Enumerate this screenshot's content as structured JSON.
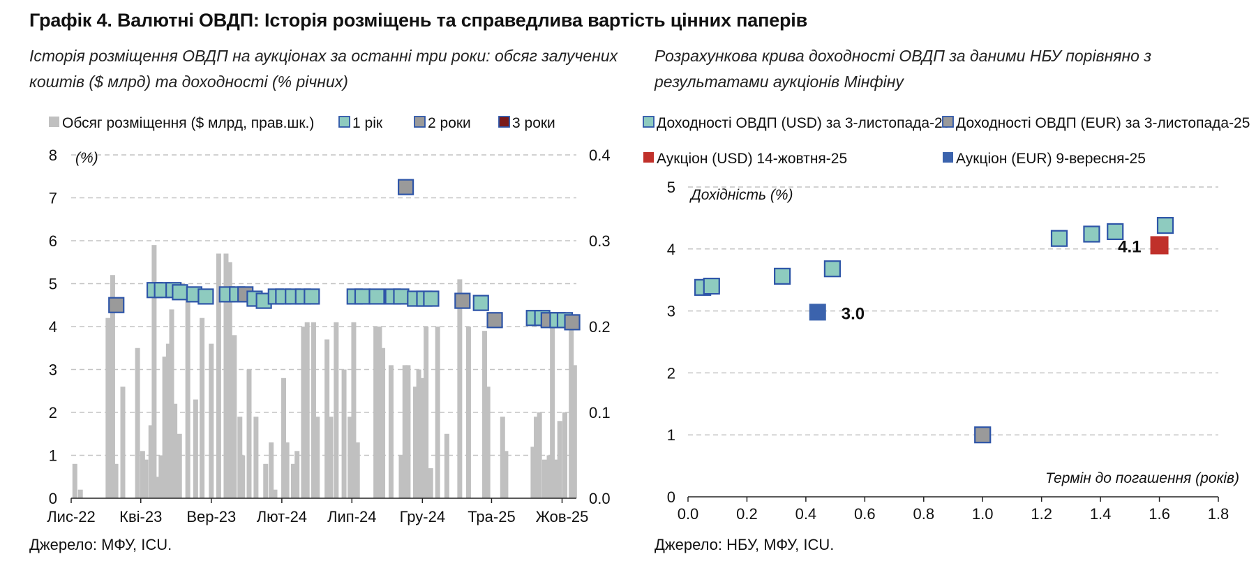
{
  "title": "Графік 4. Валютні ОВДП: Історія розміщень та справедлива вартість цінних паперів",
  "left": {
    "subtitle_line1": "Історія розміщення ОВДП на аукціонах за останні три роки: обсяг залучених",
    "subtitle_line2": "коштів ($ млрд) та доходності (% річних)",
    "source": "Джерело: МФУ, ICU."
  },
  "right": {
    "subtitle_line1": "Розрахункова крива доходності ОВДП за даними НБУ порівняно з",
    "subtitle_line2": "результатами аукціонів Мінфіну",
    "source": "Джерело: НБУ, МФУ, ICU."
  },
  "colors": {
    "bar": "#c0c0c0",
    "teal": "#8ecbbf",
    "gray_marker": "#9a9a9a",
    "marker_border": "#2e55a8",
    "dark_red": "#7a1a1a",
    "red": "#c0302a",
    "blue": "#3b63ad",
    "grid": "#c4c4c4"
  },
  "chart_data": [
    {
      "type": "bar",
      "title": "",
      "legend": [
        "Обсяг розміщення ($ млрд, прав.шк.)",
        "1 рік",
        "2 роки",
        "3 роки"
      ],
      "legend_placement": "top",
      "ylabel_left": "(%)",
      "yticks_left": [
        "0",
        "1",
        "2",
        "3",
        "4",
        "5",
        "6",
        "7",
        "8"
      ],
      "ylim_left": [
        0,
        8
      ],
      "yticks_right": [
        "0.0",
        "0.1",
        "0.2",
        "0.3",
        "0.4"
      ],
      "ylim_right": [
        0,
        0.4
      ],
      "xlim": [
        0,
        1096
      ],
      "x_ticks": [
        {
          "label": "Лис-22",
          "x": 0
        },
        {
          "label": "Кві-23",
          "x": 151
        },
        {
          "label": "Вер-23",
          "x": 304
        },
        {
          "label": "Лют-24",
          "x": 457
        },
        {
          "label": "Лип-24",
          "x": 609
        },
        {
          "label": "Гру-24",
          "x": 762
        },
        {
          "label": "Тра-25",
          "x": 912
        },
        {
          "label": "Жов-25",
          "x": 1065
        }
      ],
      "grid": true,
      "volume_series": {
        "name": "Обсяг розміщення ($ млрд, прав.шк.)",
        "x": [
          8,
          20,
          80,
          90,
          97,
          112,
          144,
          155,
          162,
          173,
          180,
          188,
          195,
          203,
          211,
          218,
          225,
          235,
          253,
          270,
          284,
          304,
          320,
          336,
          344,
          354,
          366,
          372,
          386,
          401,
          422,
          434,
          442,
          461,
          468,
          482,
          490,
          504,
          512,
          526,
          534,
          555,
          563,
          575,
          592,
          605,
          613,
          621,
          661,
          669,
          676,
          694,
          716,
          724,
          731,
          747,
          754,
          762,
          770,
          780,
          795,
          815,
          843,
          862,
          897,
          904,
          936,
          943,
          1002,
          1009,
          1016,
          1027,
          1037,
          1044,
          1052,
          1060,
          1071,
          1085,
          1092
        ],
        "values": [
          0.04,
          0.01,
          0.21,
          0.26,
          0.04,
          0.13,
          0.175,
          0.055,
          0.045,
          0.085,
          0.295,
          0.025,
          0.05,
          0.165,
          0.18,
          0.22,
          0.11,
          0.075,
          0.235,
          0.115,
          0.21,
          0.18,
          0.285,
          0.285,
          0.275,
          0.19,
          0.095,
          0.05,
          0.15,
          0.095,
          0.04,
          0.065,
          0.01,
          0.14,
          0.065,
          0.04,
          0.055,
          0.2,
          0.205,
          0.205,
          0.095,
          0.185,
          0.095,
          0.205,
          0.15,
          0.095,
          0.205,
          0.065,
          0.2,
          0.2,
          0.175,
          0.155,
          0.05,
          0.155,
          0.155,
          0.13,
          0.15,
          0.14,
          0.2,
          0.035,
          0.2,
          0.075,
          0.255,
          0.2,
          0.195,
          0.13,
          0.095,
          0.055,
          0.06,
          0.095,
          0.1,
          0.045,
          0.05,
          0.215,
          0.045,
          0.09,
          0.1,
          0.21,
          0.155
        ]
      },
      "markers": [
        {
          "series": "2 роки",
          "x": 98,
          "y": 4.5
        },
        {
          "series": "1 рік",
          "x": 181,
          "y": 4.85
        },
        {
          "series": "1 рік",
          "x": 197,
          "y": 4.85
        },
        {
          "series": "1 рік",
          "x": 222,
          "y": 4.85
        },
        {
          "series": "1 рік",
          "x": 236,
          "y": 4.8
        },
        {
          "series": "1 рік",
          "x": 267,
          "y": 4.75
        },
        {
          "series": "1 рік",
          "x": 292,
          "y": 4.7
        },
        {
          "series": "1 рік",
          "x": 338,
          "y": 4.75
        },
        {
          "series": "1 рік",
          "x": 360,
          "y": 4.75
        },
        {
          "series": "2 роки",
          "x": 378,
          "y": 4.75
        },
        {
          "series": "1 рік",
          "x": 398,
          "y": 4.65
        },
        {
          "series": "1 рік",
          "x": 418,
          "y": 4.6
        },
        {
          "series": "1 рік",
          "x": 444,
          "y": 4.7
        },
        {
          "series": "1 рік",
          "x": 460,
          "y": 4.7
        },
        {
          "series": "1 рік",
          "x": 481,
          "y": 4.7
        },
        {
          "series": "1 рік",
          "x": 503,
          "y": 4.7
        },
        {
          "series": "1 рік",
          "x": 522,
          "y": 4.7
        },
        {
          "series": "1 рік",
          "x": 615,
          "y": 4.7
        },
        {
          "series": "1 рік",
          "x": 632,
          "y": 4.7
        },
        {
          "series": "1 рік",
          "x": 663,
          "y": 4.7
        },
        {
          "series": "1 рік",
          "x": 698,
          "y": 4.7
        },
        {
          "series": "1 рік",
          "x": 716,
          "y": 4.7
        },
        {
          "series": "2 роки",
          "x": 726,
          "y": 7.25
        },
        {
          "series": "1 рік",
          "x": 746,
          "y": 4.65
        },
        {
          "series": "1 рік",
          "x": 766,
          "y": 4.65
        },
        {
          "series": "1 рік",
          "x": 781,
          "y": 4.65
        },
        {
          "series": "2 роки",
          "x": 849,
          "y": 4.6
        },
        {
          "series": "1 рік",
          "x": 889,
          "y": 4.55
        },
        {
          "series": "2 роки",
          "x": 919,
          "y": 4.15
        },
        {
          "series": "1 рік",
          "x": 1004,
          "y": 4.2
        },
        {
          "series": "1 рік",
          "x": 1022,
          "y": 4.2
        },
        {
          "series": "2 роки",
          "x": 1036,
          "y": 4.15
        },
        {
          "series": "1 рік",
          "x": 1055,
          "y": 4.15
        },
        {
          "series": "1 рік",
          "x": 1071,
          "y": 4.15
        },
        {
          "series": "2 роки",
          "x": 1087,
          "y": 4.1
        }
      ]
    },
    {
      "type": "scatter",
      "title": "",
      "legend": [
        "Доходності ОВДП (USD) за 3-листопада-25",
        "Доходності ОВДП (EUR) за 3-листопада-25",
        "Аукціон (USD) 14-жовтня-25",
        "Аукціон (EUR) 9-вересня-25"
      ],
      "legend_placement": "top",
      "ylabel": "Дохідність (%)",
      "xlabel": "Термін до погашення (років)",
      "ylim": [
        0,
        5
      ],
      "xlim": [
        0,
        1.8
      ],
      "yticks": [
        "0",
        "1",
        "2",
        "3",
        "4",
        "5"
      ],
      "xticks": [
        "0.0",
        "0.2",
        "0.4",
        "0.6",
        "0.8",
        "1.0",
        "1.2",
        "1.4",
        "1.6",
        "1.8"
      ],
      "grid": true,
      "series": [
        {
          "name": "Доходності ОВДП (USD) за 3-листопада-25",
          "x": [
            0.05,
            0.08,
            0.32,
            0.49,
            1.26,
            1.37,
            1.45,
            1.62
          ],
          "y": [
            3.38,
            3.4,
            3.56,
            3.68,
            4.17,
            4.24,
            4.28,
            4.38
          ]
        },
        {
          "name": "Доходності ОВДП (EUR) за 3-листопада-25",
          "x": [
            1.0
          ],
          "y": [
            1.0
          ]
        },
        {
          "name": "Аукціон (USD) 14-жовтня-25",
          "x": [
            1.6
          ],
          "y": [
            4.06
          ],
          "label": "4.1"
        },
        {
          "name": "Аукціон (EUR) 9-вересня-25",
          "x": [
            0.44
          ],
          "y": [
            2.98
          ],
          "label": "3.0"
        }
      ]
    }
  ]
}
